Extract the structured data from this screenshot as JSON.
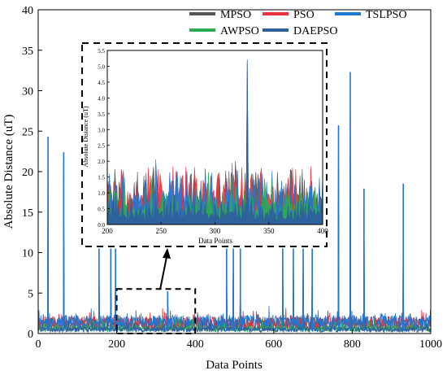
{
  "chart_data": [
    {
      "id": "main",
      "type": "line",
      "xlabel": "Data Points",
      "ylabel": "Absolute Distance (uT)",
      "xlim": [
        0,
        1000
      ],
      "ylim": [
        0,
        40
      ],
      "xticks": [
        0,
        200,
        400,
        600,
        800,
        1000
      ],
      "yticks": [
        0,
        5,
        10,
        15,
        20,
        25,
        30,
        35,
        40
      ],
      "grid": false,
      "legend_position": "top-right",
      "series": [
        {
          "name": "MPSO",
          "color": "#555555",
          "baseline": 1.2
        },
        {
          "name": "PSO",
          "color": "#e8323c",
          "baseline": 1.3
        },
        {
          "name": "TSLPSO",
          "color": "#1f77d4",
          "baseline": 1.4
        },
        {
          "name": "AWPSO",
          "color": "#2eaa52",
          "baseline": 0.6
        },
        {
          "name": "DAEPSO",
          "color": "#2e5fa0",
          "baseline": 0.5
        }
      ],
      "spikes": [
        {
          "x": 25,
          "value": 24.3
        },
        {
          "x": 65,
          "value": 22.4
        },
        {
          "x": 155,
          "value": 10.5
        },
        {
          "x": 185,
          "value": 10.5
        },
        {
          "x": 197,
          "value": 10.5
        },
        {
          "x": 330,
          "value": 5.2
        },
        {
          "x": 480,
          "value": 10.5
        },
        {
          "x": 497,
          "value": 10.5
        },
        {
          "x": 515,
          "value": 10.5
        },
        {
          "x": 623,
          "value": 10.5
        },
        {
          "x": 650,
          "value": 10.5
        },
        {
          "x": 675,
          "value": 10.5
        },
        {
          "x": 698,
          "value": 10.5
        },
        {
          "x": 765,
          "value": 25.7
        },
        {
          "x": 795,
          "value": 32.3
        },
        {
          "x": 830,
          "value": 17.9
        },
        {
          "x": 930,
          "value": 18.5
        }
      ]
    },
    {
      "id": "inset",
      "type": "area",
      "xlabel": "Data Points",
      "ylabel": "Absolute Distance (uT)",
      "xlim": [
        200,
        400
      ],
      "ylim": [
        0,
        5.5
      ],
      "xticks": [
        200,
        250,
        300,
        350,
        400
      ],
      "yticks": [
        0.0,
        0.5,
        1.0,
        1.5,
        2.0,
        2.5,
        3.0,
        3.5,
        4.0,
        4.5,
        5.0,
        5.5
      ],
      "ytick_labels": [
        "0.0",
        "0.5",
        "1.0",
        "1.5",
        "2.0",
        "2.5",
        "3.0",
        "3.5",
        "4.0",
        "4.5",
        "5.0",
        "5.5"
      ],
      "spikes": [
        {
          "x": 330,
          "value": 5.2
        }
      ],
      "zoom_box": {
        "x": [
          200,
          400
        ],
        "y": [
          0,
          5.5
        ]
      }
    }
  ]
}
